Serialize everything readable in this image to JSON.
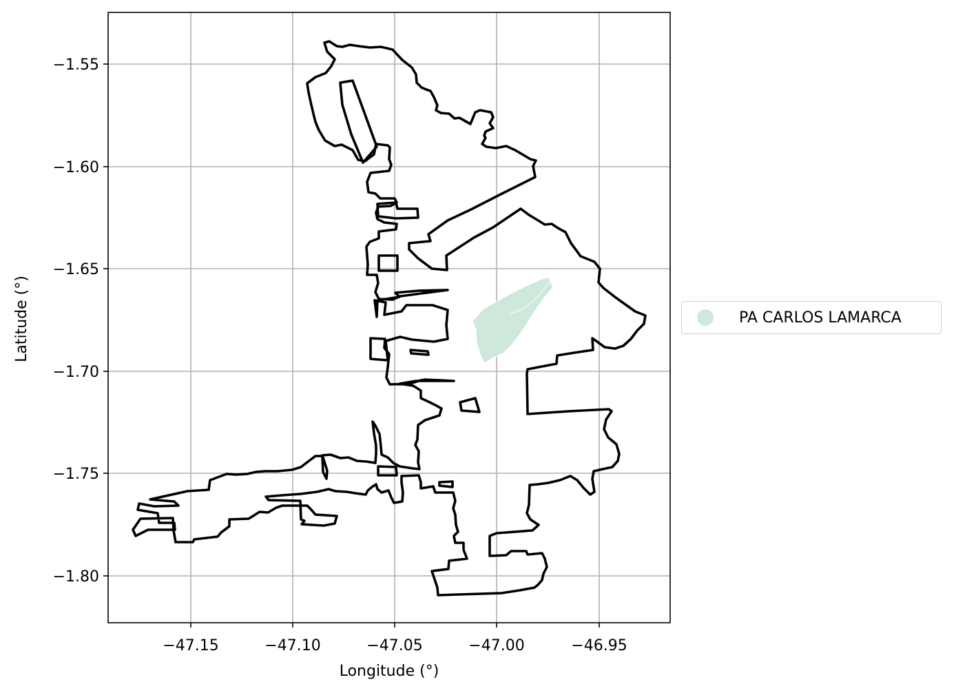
{
  "map": {
    "xlabel": "Longitude (°)",
    "ylabel": "Latitude (°)",
    "x_ticks": [
      "−47.15",
      "−47.10",
      "−47.05",
      "−47.00",
      "−46.95"
    ],
    "y_ticks": [
      "−1.55",
      "−1.60",
      "−1.65",
      "−1.70",
      "−1.75",
      "−1.80"
    ],
    "grid": true,
    "boundary_color": "#000000",
    "legend": {
      "placement": "right-outside",
      "label": "PA CARLOS LAMARCA",
      "color": "#cfe8dc"
    }
  }
}
